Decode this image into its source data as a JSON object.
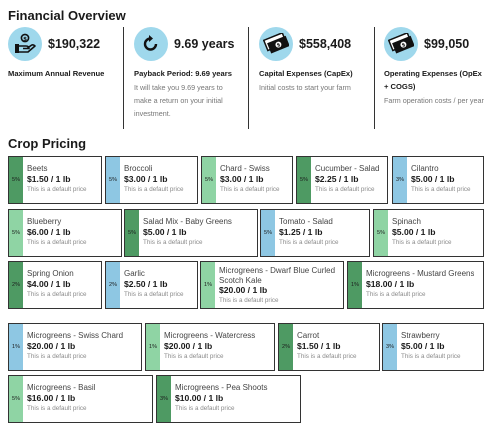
{
  "financial_overview": {
    "title": "Financial Overview",
    "metrics": [
      {
        "icon": "money-hand-icon",
        "value": "$190,322",
        "label": "Maximum Annual Revenue",
        "description": ""
      },
      {
        "icon": "refresh-icon",
        "value": "9.69 years",
        "label": "Payback Period: 9.69 years",
        "description": "It will take you 9.69 years to make a return on your initial investment."
      },
      {
        "icon": "money-bills-icon",
        "value": "$558,408",
        "label": "Capital Expenses (CapEx)",
        "description": "Initial costs to start your farm"
      },
      {
        "icon": "money-bills-icon",
        "value": "$99,050",
        "label": "Operating Expenses (OpEx + COGS)",
        "description": "Farm operation costs / per year"
      }
    ]
  },
  "crop_pricing": {
    "title": "Crop Pricing",
    "default_note": "This is a default price",
    "colors": {
      "light_green": "#8fd4a4",
      "dark_green": "#4e9a63",
      "blue": "#8ec7e3"
    },
    "crops": [
      {
        "name": "Beets",
        "price": "$1.50 / 1 lb",
        "percent": "5%",
        "color": "#4e9a63"
      },
      {
        "name": "Broccoli",
        "price": "$3.00 / 1 lb",
        "percent": "5%",
        "color": "#8ec7e3"
      },
      {
        "name": "Chard - Swiss",
        "price": "$3.00 / 1 lb",
        "percent": "5%",
        "color": "#8fd4a4"
      },
      {
        "name": "Cucumber - Salad",
        "price": "$2.25 / 1 lb",
        "percent": "5%",
        "color": "#4e9a63"
      },
      {
        "name": "Cilantro",
        "price": "$5.00 / 1 lb",
        "percent": "3%",
        "color": "#8ec7e3"
      },
      {
        "name": "Blueberry",
        "price": "$6.00 / 1 lb",
        "percent": "5%",
        "color": "#8fd4a4"
      },
      {
        "name": "Salad Mix - Baby Greens",
        "price": "$5.00 / 1 lb",
        "percent": "5%",
        "color": "#4e9a63"
      },
      {
        "name": "Tomato - Salad",
        "price": "$1.25 / 1 lb",
        "percent": "5%",
        "color": "#8ec7e3"
      },
      {
        "name": "Spinach",
        "price": "$5.00 / 1 lb",
        "percent": "5%",
        "color": "#8fd4a4"
      },
      {
        "name": "Spring Onion",
        "price": "$4.00 / 1 lb",
        "percent": "2%",
        "color": "#4e9a63"
      },
      {
        "name": "Garlic",
        "price": "$2.50 / 1 lb",
        "percent": "2%",
        "color": "#8ec7e3"
      },
      {
        "name": "Microgreens - Dwarf Blue Curled Scotch Kale",
        "price": "$20.00 / 1 lb",
        "percent": "1%",
        "color": "#8fd4a4"
      },
      {
        "name": "Microgreens - Mustard Greens",
        "price": "$18.00 / 1 lb",
        "percent": "1%",
        "color": "#4e9a63"
      },
      {
        "name": "Microgreens - Swiss Chard",
        "price": "$20.00 / 1 lb",
        "percent": "1%",
        "color": "#8ec7e3"
      },
      {
        "name": "Microgreens - Watercress",
        "price": "$20.00 / 1 lb",
        "percent": "1%",
        "color": "#8fd4a4"
      },
      {
        "name": "Carrot",
        "price": "$1.50 / 1 lb",
        "percent": "2%",
        "color": "#4e9a63"
      },
      {
        "name": "Strawberry",
        "price": "$5.00 / 1 lb",
        "percent": "3%",
        "color": "#8ec7e3"
      },
      {
        "name": "Microgreens - Basil",
        "price": "$16.00 / 1 lb",
        "percent": "5%",
        "color": "#8fd4a4"
      },
      {
        "name": "Microgreens - Pea Shoots",
        "price": "$10.00 / 1 lb",
        "percent": "3%",
        "color": "#4e9a63"
      }
    ]
  }
}
